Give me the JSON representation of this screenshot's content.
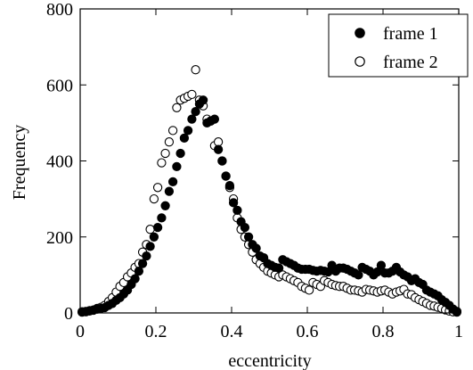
{
  "chart_data": {
    "type": "scatter",
    "title": "",
    "xlabel": "eccentricity",
    "ylabel": "Frequency",
    "xlim": [
      0,
      1
    ],
    "ylim": [
      0,
      800
    ],
    "xticks": [
      0,
      0.2,
      0.4,
      0.6,
      0.8,
      1
    ],
    "xtick_labels": [
      "0",
      "0.2",
      "0.4",
      "0.6",
      "0.8",
      "1"
    ],
    "yticks": [
      0,
      200,
      400,
      600,
      800
    ],
    "ytick_labels": [
      "0",
      "200",
      "400",
      "600",
      "800"
    ],
    "grid": false,
    "legend_position": "top-right",
    "series": [
      {
        "name": "frame 1",
        "marker": "filled-circle",
        "color": "#000000",
        "x": [
          0.005,
          0.015,
          0.025,
          0.035,
          0.045,
          0.055,
          0.065,
          0.075,
          0.085,
          0.095,
          0.105,
          0.115,
          0.125,
          0.135,
          0.145,
          0.155,
          0.165,
          0.175,
          0.185,
          0.195,
          0.205,
          0.215,
          0.225,
          0.235,
          0.245,
          0.255,
          0.265,
          0.275,
          0.285,
          0.295,
          0.305,
          0.315,
          0.325,
          0.335,
          0.345,
          0.355,
          0.365,
          0.375,
          0.385,
          0.395,
          0.405,
          0.415,
          0.425,
          0.435,
          0.445,
          0.455,
          0.465,
          0.475,
          0.485,
          0.495,
          0.505,
          0.515,
          0.525,
          0.535,
          0.545,
          0.555,
          0.565,
          0.575,
          0.585,
          0.595,
          0.605,
          0.615,
          0.625,
          0.635,
          0.645,
          0.655,
          0.665,
          0.675,
          0.685,
          0.695,
          0.705,
          0.715,
          0.725,
          0.735,
          0.745,
          0.755,
          0.765,
          0.775,
          0.785,
          0.795,
          0.805,
          0.815,
          0.825,
          0.835,
          0.845,
          0.855,
          0.865,
          0.875,
          0.885,
          0.895,
          0.905,
          0.915,
          0.925,
          0.935,
          0.945,
          0.955,
          0.965,
          0.975,
          0.985,
          0.995
        ],
        "y": [
          2,
          3,
          5,
          7,
          10,
          12,
          14,
          20,
          25,
          33,
          40,
          50,
          60,
          75,
          90,
          110,
          130,
          150,
          175,
          200,
          225,
          250,
          282,
          320,
          345,
          385,
          420,
          460,
          480,
          510,
          530,
          550,
          560,
          500,
          505,
          510,
          430,
          400,
          360,
          335,
          290,
          270,
          240,
          225,
          200,
          180,
          170,
          150,
          145,
          130,
          125,
          120,
          118,
          140,
          135,
          130,
          125,
          118,
          115,
          115,
          115,
          112,
          110,
          112,
          110,
          108,
          125,
          110,
          118,
          118,
          115,
          110,
          105,
          100,
          120,
          115,
          110,
          100,
          108,
          125,
          105,
          105,
          110,
          120,
          108,
          100,
          95,
          85,
          90,
          80,
          75,
          60,
          55,
          50,
          45,
          35,
          28,
          20,
          10,
          4
        ]
      },
      {
        "name": "frame 2",
        "marker": "open-circle",
        "color": "#000000",
        "x": [
          0.005,
          0.015,
          0.025,
          0.035,
          0.045,
          0.055,
          0.065,
          0.075,
          0.085,
          0.095,
          0.105,
          0.115,
          0.125,
          0.135,
          0.145,
          0.155,
          0.165,
          0.175,
          0.185,
          0.195,
          0.205,
          0.215,
          0.225,
          0.235,
          0.245,
          0.255,
          0.265,
          0.275,
          0.285,
          0.295,
          0.305,
          0.315,
          0.325,
          0.335,
          0.345,
          0.355,
          0.365,
          0.375,
          0.385,
          0.395,
          0.405,
          0.415,
          0.425,
          0.435,
          0.445,
          0.455,
          0.465,
          0.475,
          0.485,
          0.495,
          0.505,
          0.515,
          0.525,
          0.535,
          0.545,
          0.555,
          0.565,
          0.575,
          0.585,
          0.595,
          0.605,
          0.615,
          0.625,
          0.635,
          0.645,
          0.655,
          0.665,
          0.675,
          0.685,
          0.695,
          0.705,
          0.715,
          0.725,
          0.735,
          0.745,
          0.755,
          0.765,
          0.775,
          0.785,
          0.795,
          0.805,
          0.815,
          0.825,
          0.835,
          0.845,
          0.855,
          0.865,
          0.875,
          0.885,
          0.895,
          0.905,
          0.915,
          0.925,
          0.935,
          0.945,
          0.955,
          0.965,
          0.975,
          0.985,
          0.995
        ],
        "y": [
          3,
          4,
          6,
          8,
          12,
          15,
          20,
          30,
          40,
          55,
          70,
          80,
          95,
          105,
          120,
          130,
          160,
          180,
          220,
          300,
          330,
          395,
          420,
          450,
          480,
          540,
          560,
          565,
          570,
          575,
          640,
          560,
          545,
          510,
          505,
          440,
          450,
          400,
          360,
          330,
          300,
          250,
          220,
          200,
          180,
          160,
          140,
          130,
          120,
          110,
          105,
          100,
          95,
          100,
          95,
          90,
          85,
          80,
          70,
          65,
          60,
          80,
          75,
          70,
          85,
          80,
          75,
          72,
          70,
          70,
          65,
          60,
          60,
          58,
          55,
          62,
          60,
          58,
          55,
          58,
          60,
          55,
          50,
          55,
          58,
          62,
          50,
          48,
          40,
          35,
          30,
          25,
          20,
          18,
          15,
          12,
          8,
          5,
          3,
          2
        ]
      }
    ]
  }
}
